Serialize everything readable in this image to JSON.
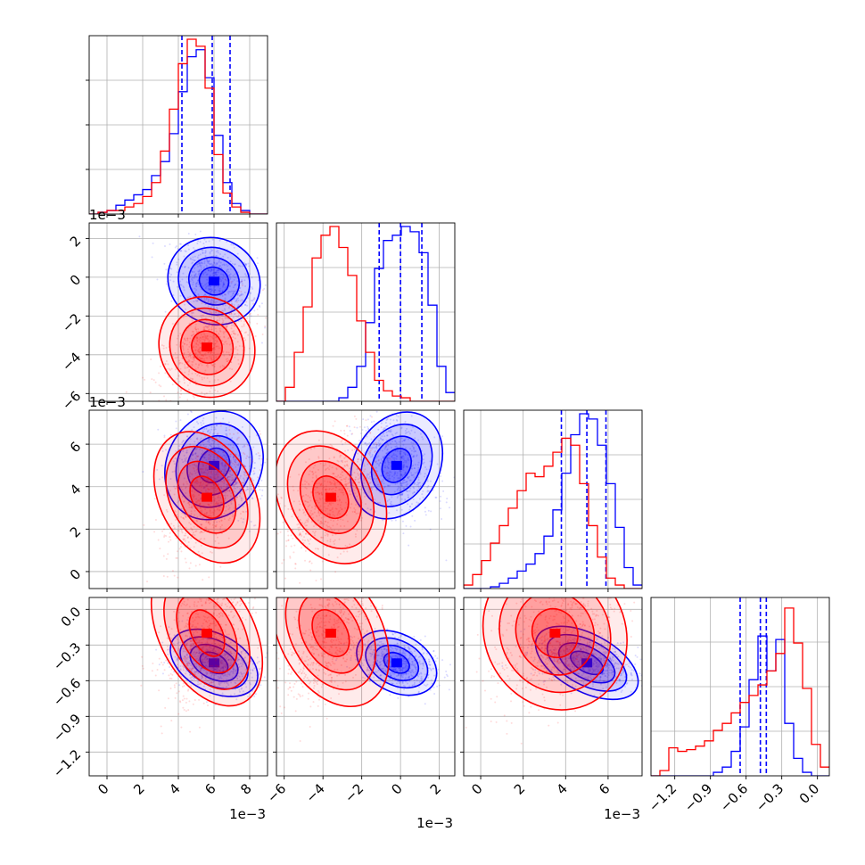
{
  "colors": {
    "series_a": "#0000ff",
    "series_b": "#ff0000",
    "grid": "#b0b0b0",
    "frame": "#000000"
  },
  "chart_data": {
    "type": "corner",
    "grid": true,
    "parameters": [
      {
        "range": [
          -1,
          9
        ],
        "ticks": [
          "0",
          "2",
          "4",
          "6",
          "8"
        ],
        "tick_values": [
          0,
          2,
          4,
          6,
          8
        ],
        "offset_label": "1e−3"
      },
      {
        "range": [
          -6.4,
          2.8
        ],
        "ticks": [
          "−6",
          "−4",
          "−2",
          "0",
          "2"
        ],
        "tick_values": [
          -6,
          -4,
          -2,
          0,
          2
        ],
        "offset_label": "1e−3"
      },
      {
        "range": [
          -0.8,
          7.6
        ],
        "ticks": [
          "0",
          "2",
          "4",
          "6"
        ],
        "tick_values": [
          0,
          2,
          4,
          6
        ],
        "offset_label": "1e−3"
      },
      {
        "range": [
          -1.4,
          0.1
        ],
        "ticks": [
          "−1.2",
          "−0.9",
          "−0.6",
          "−0.3",
          "0.0"
        ],
        "tick_values": [
          -1.2,
          -0.9,
          -0.6,
          -0.3,
          0.0
        ]
      }
    ],
    "series": [
      {
        "color": "#0000ff",
        "quantiles": [
          [
            4.2,
            5.9,
            6.9
          ],
          [
            -1.1,
            0.0,
            1.1
          ],
          [
            3.8,
            5.0,
            5.9
          ],
          [
            -0.65,
            -0.48,
            -0.43
          ]
        ],
        "centers": [
          6.0,
          -0.2,
          5.0,
          -0.45
        ],
        "spreads": [
          1.2,
          1.0,
          1.2,
          0.11
        ],
        "histograms": [
          [
            0.0,
            0.01,
            0.02,
            0.05,
            0.08,
            0.11,
            0.14,
            0.22,
            0.3,
            0.46,
            0.7,
            0.9,
            0.94,
            0.78,
            0.45,
            0.18,
            0.06,
            0.02,
            0.0,
            0.0
          ],
          [
            0.0,
            0.0,
            0.0,
            0.0,
            0.0,
            0.0,
            0.0,
            0.02,
            0.08,
            0.2,
            0.45,
            0.76,
            0.92,
            0.95,
            1.0,
            0.97,
            0.85,
            0.55,
            0.2,
            0.05
          ],
          [
            0.0,
            0.0,
            0.0,
            0.01,
            0.03,
            0.06,
            0.1,
            0.14,
            0.2,
            0.3,
            0.45,
            0.66,
            0.88,
            1.0,
            0.97,
            0.82,
            0.6,
            0.35,
            0.12,
            0.02
          ],
          [
            0.0,
            0.0,
            0.0,
            0.0,
            0.0,
            0.0,
            0.0,
            0.02,
            0.05,
            0.14,
            0.28,
            0.55,
            0.8,
            0.6,
            0.78,
            0.3,
            0.1,
            0.02,
            0.0,
            0.0
          ]
        ]
      },
      {
        "color": "#ff0000",
        "quantiles": [],
        "centers": [
          5.6,
          -3.6,
          3.5,
          -0.2
        ],
        "spreads": [
          1.2,
          1.2,
          1.5,
          0.3
        ],
        "histograms": [
          [
            0.0,
            0.01,
            0.02,
            0.02,
            0.04,
            0.06,
            0.1,
            0.18,
            0.36,
            0.6,
            0.86,
            1.0,
            0.96,
            0.72,
            0.34,
            0.12,
            0.04,
            0.01,
            0.0,
            0.0
          ],
          [
            0.0,
            0.08,
            0.28,
            0.54,
            0.82,
            0.95,
            1.0,
            0.88,
            0.72,
            0.46,
            0.28,
            0.12,
            0.06,
            0.03,
            0.02,
            0.0,
            0.0,
            0.0,
            0.0,
            0.0
          ],
          [
            0.02,
            0.08,
            0.16,
            0.26,
            0.36,
            0.46,
            0.56,
            0.66,
            0.64,
            0.7,
            0.78,
            0.86,
            0.82,
            0.6,
            0.36,
            0.18,
            0.06,
            0.02,
            0.0,
            0.0
          ],
          [
            0.0,
            0.03,
            0.16,
            0.14,
            0.15,
            0.17,
            0.2,
            0.26,
            0.3,
            0.36,
            0.42,
            0.46,
            0.52,
            0.6,
            0.7,
            0.96,
            0.76,
            0.5,
            0.18,
            0.05
          ]
        ]
      }
    ]
  }
}
